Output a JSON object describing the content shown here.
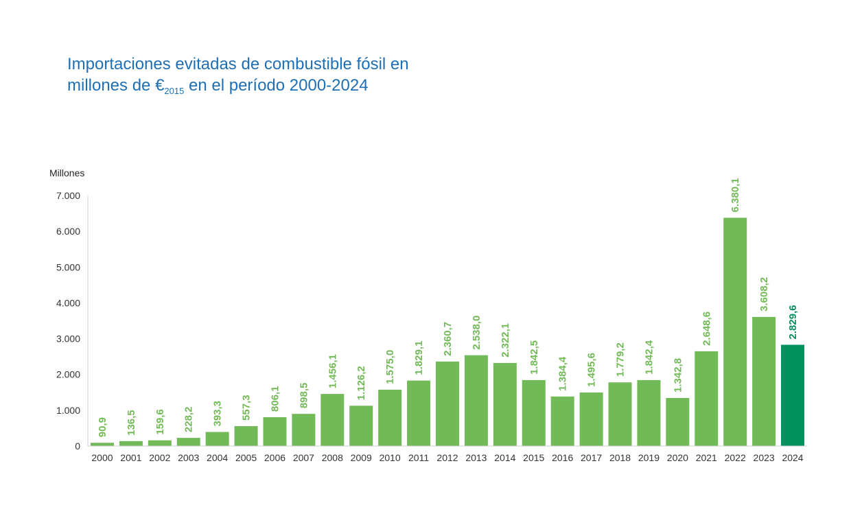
{
  "title": {
    "line1": "Importaciones evitadas de combustible fósil en",
    "line2_before": "millones de €",
    "line2_sub": "2015",
    "line2_after": " en el período 2000-2024"
  },
  "colors": {
    "title": "#1f6fb5",
    "bar": "#72b957",
    "highlight": "#00915e",
    "axis": "#cfcfcf",
    "tick_text": "#333333"
  },
  "chart_data": {
    "type": "bar",
    "title": "Importaciones evitadas de combustible fósil en millones de €2015 en el período 2000-2024",
    "ylabel": "Millones",
    "xlabel": "",
    "ylim": [
      0,
      7000
    ],
    "yticks": [
      0,
      1000,
      2000,
      3000,
      4000,
      5000,
      6000,
      7000
    ],
    "ytick_labels": [
      "0",
      "1.000",
      "2.000",
      "3.000",
      "4.000",
      "5.000",
      "6.000",
      "7.000"
    ],
    "grid": false,
    "categories": [
      "2000",
      "2001",
      "2002",
      "2003",
      "2004",
      "2005",
      "2006",
      "2007",
      "2008",
      "2009",
      "2010",
      "2011",
      "2012",
      "2013",
      "2014",
      "2015",
      "2016",
      "2017",
      "2018",
      "2019",
      "2020",
      "2021",
      "2022",
      "2023",
      "2024"
    ],
    "values": [
      90.9,
      136.5,
      159.6,
      228.2,
      393.3,
      557.3,
      806.1,
      898.5,
      1456.1,
      1126.2,
      1575.0,
      1829.1,
      2360.7,
      2538.0,
      2322.1,
      1842.5,
      1384.4,
      1495.6,
      1779.2,
      1842.4,
      1342.8,
      2648.6,
      6380.1,
      3608.2,
      2829.6
    ],
    "value_labels": [
      "90,9",
      "136,5",
      "159,6",
      "228,2",
      "393,3",
      "557,3",
      "806,1",
      "898,5",
      "1.456,1",
      "1.126,2",
      "1.575,0",
      "1.829,1",
      "2.360,7",
      "2.538,0",
      "2.322,1",
      "1.842,5",
      "1.384,4",
      "1.495,6",
      "1.779,2",
      "1.842,4",
      "1.342,8",
      "2.648,6",
      "6.380,1",
      "3.608,2",
      "2.829,6"
    ],
    "highlight_category": "2024"
  }
}
